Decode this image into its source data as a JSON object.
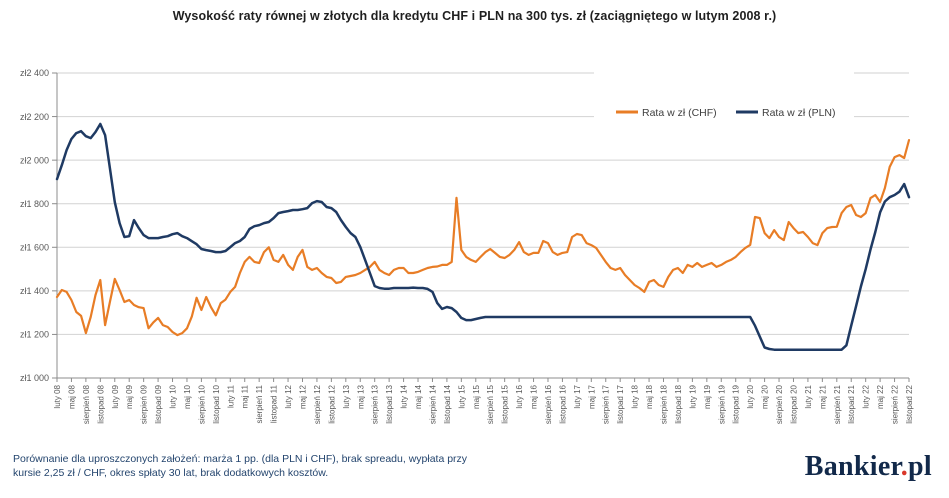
{
  "title": "Wysokość raty równej w złotych dla kredytu CHF i PLN na 300 tys. zł (zaciągniętego w lutym 2008 r.)",
  "footer": {
    "note_lines": [
      "Porównanie dla uproszczonych założeń: marża 1 pp. (dla PLN i CHF), brak spreadu, wypłata przy",
      "kursie 2,25 zł / CHF, okres spłaty 30 lat, brak dodatkowych kosztów."
    ],
    "logo": {
      "text": "Bankier",
      "dot": ".",
      "suffix": "pl"
    }
  },
  "colors": {
    "chf_line": "#e87d26",
    "pln_line": "#1f3a63",
    "grid": "#d2d2d2",
    "axis": "#8c8c8c",
    "tick_label": "#595959",
    "legend_text": "#3f3f3f",
    "title_text": "#1f1f1f",
    "footer_text": "#24456e",
    "logo_navy": "#12294a",
    "logo_dot": "#d9372a"
  },
  "chart_data": {
    "type": "line",
    "title": "Wysokość raty równej w złotych dla kredytu CHF i PLN na 300 tys. zł (zaciągniętego w lutym 2008 r.)",
    "xlabel": "",
    "ylabel": "",
    "grid": true,
    "legend_position": "top-inside",
    "ylim": [
      1000,
      2400
    ],
    "ytick_step": 200,
    "ytick_prefix": "zł",
    "ytick_labels": [
      "zł1 000",
      "zł1 200",
      "zł1 400",
      "zł1 600",
      "zł1 800",
      "zł2 000",
      "zł2 200",
      "zł2 400"
    ],
    "x_unit": "month",
    "x_start": "luty 2008",
    "x_end": "listopad 2022",
    "x_tick_every": 3,
    "x_tick_labels": [
      "luty 08",
      "maj 08",
      "sierpień 08",
      "listopad 08",
      "luty 09",
      "maj 09",
      "sierpień 09",
      "listopad 09",
      "luty 10",
      "maj 10",
      "sierpień 10",
      "listopad 10",
      "luty 11",
      "maj 11",
      "sierpień 11",
      "listopad 11",
      "luty 12",
      "maj 12",
      "sierpień 12",
      "listopad 12",
      "luty 13",
      "maj 13",
      "sierpień 13",
      "listopad 13",
      "luty 14",
      "maj 14",
      "sierpień 14",
      "listopad 14",
      "luty 15",
      "maj 15",
      "sierpień 15",
      "listopad 15",
      "luty 16",
      "maj 16",
      "sierpień 16",
      "listopad 16",
      "luty 17",
      "maj 17",
      "sierpień 17",
      "listopad 17",
      "luty 18",
      "maj 18",
      "sierpień 18",
      "listopad 18",
      "luty 19",
      "maj 19",
      "sierpień 19",
      "listopad 19",
      "luty 20",
      "maj 20",
      "sierpień 20",
      "listopad 20",
      "luty 21",
      "maj 21",
      "sierpień 21",
      "listopad 21",
      "luty 22",
      "maj 22",
      "sierpień 22",
      "listopad 22"
    ],
    "series": [
      {
        "name": "Rata w zł (CHF)",
        "color": "#e87d26",
        "values": [
          1372,
          1404,
          1395,
          1358,
          1303,
          1285,
          1206,
          1280,
          1381,
          1450,
          1243,
          1349,
          1455,
          1404,
          1349,
          1358,
          1335,
          1325,
          1321,
          1228,
          1255,
          1276,
          1243,
          1234,
          1211,
          1197,
          1206,
          1228,
          1282,
          1368,
          1312,
          1372,
          1325,
          1288,
          1344,
          1360,
          1395,
          1418,
          1482,
          1533,
          1556,
          1533,
          1528,
          1578,
          1600,
          1542,
          1533,
          1565,
          1519,
          1496,
          1556,
          1588,
          1510,
          1496,
          1505,
          1482,
          1464,
          1459,
          1436,
          1441,
          1464,
          1468,
          1473,
          1482,
          1496,
          1510,
          1533,
          1496,
          1482,
          1473,
          1496,
          1505,
          1505,
          1482,
          1482,
          1487,
          1496,
          1505,
          1510,
          1512,
          1519,
          1519,
          1533,
          1827,
          1588,
          1556,
          1542,
          1533,
          1556,
          1578,
          1592,
          1574,
          1556,
          1551,
          1565,
          1588,
          1624,
          1578,
          1565,
          1574,
          1574,
          1629,
          1619,
          1578,
          1565,
          1574,
          1578,
          1647,
          1661,
          1656,
          1619,
          1610,
          1597,
          1565,
          1533,
          1505,
          1496,
          1505,
          1473,
          1450,
          1427,
          1413,
          1395,
          1441,
          1450,
          1427,
          1418,
          1464,
          1496,
          1505,
          1482,
          1519,
          1510,
          1528,
          1510,
          1519,
          1528,
          1510,
          1519,
          1533,
          1542,
          1556,
          1578,
          1597,
          1611,
          1739,
          1734,
          1665,
          1642,
          1679,
          1647,
          1633,
          1716,
          1688,
          1665,
          1670,
          1647,
          1619,
          1610,
          1665,
          1688,
          1693,
          1694,
          1757,
          1785,
          1794,
          1748,
          1739,
          1757,
          1826,
          1840,
          1808,
          1872,
          1969,
          2014,
          2023,
          2010,
          2092
        ]
      },
      {
        "name": "Rata w zł (PLN)",
        "color": "#1f3a63",
        "values": [
          1913,
          1977,
          2046,
          2097,
          2124,
          2133,
          2110,
          2101,
          2129,
          2166,
          2115,
          1963,
          1807,
          1711,
          1647,
          1651,
          1725,
          1688,
          1656,
          1642,
          1642,
          1642,
          1647,
          1651,
          1660,
          1665,
          1651,
          1642,
          1628,
          1614,
          1592,
          1587,
          1583,
          1578,
          1578,
          1583,
          1601,
          1619,
          1629,
          1647,
          1684,
          1697,
          1702,
          1711,
          1716,
          1734,
          1757,
          1762,
          1766,
          1771,
          1771,
          1775,
          1780,
          1803,
          1812,
          1808,
          1785,
          1780,
          1762,
          1725,
          1693,
          1665,
          1647,
          1601,
          1542,
          1482,
          1422,
          1413,
          1410,
          1410,
          1413,
          1413,
          1413,
          1413,
          1415,
          1413,
          1413,
          1409,
          1395,
          1344,
          1317,
          1326,
          1321,
          1303,
          1276,
          1266,
          1266,
          1271,
          1276,
          1280,
          1280,
          1280,
          1280,
          1280,
          1280,
          1280,
          1280,
          1280,
          1280,
          1280,
          1280,
          1280,
          1280,
          1280,
          1280,
          1280,
          1280,
          1280,
          1280,
          1280,
          1280,
          1280,
          1280,
          1280,
          1280,
          1280,
          1280,
          1280,
          1280,
          1280,
          1280,
          1280,
          1280,
          1280,
          1280,
          1280,
          1280,
          1280,
          1280,
          1280,
          1280,
          1280,
          1280,
          1280,
          1280,
          1280,
          1280,
          1280,
          1280,
          1280,
          1280,
          1280,
          1280,
          1280,
          1280,
          1240,
          1190,
          1140,
          1133,
          1130,
          1130,
          1130,
          1130,
          1130,
          1130,
          1130,
          1130,
          1130,
          1130,
          1130,
          1130,
          1130,
          1130,
          1130,
          1150,
          1240,
          1330,
          1420,
          1500,
          1590,
          1670,
          1760,
          1810,
          1830,
          1840,
          1855,
          1890,
          1830
        ]
      }
    ]
  }
}
